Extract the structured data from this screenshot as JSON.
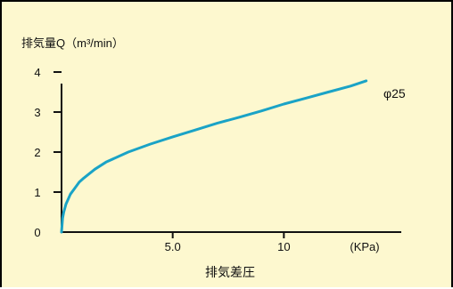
{
  "chart_data": {
    "type": "line",
    "ylabel": "排気量Q（m³/min）",
    "xlabel": "排気差圧",
    "x_unit": "(KPa)",
    "x_ticks": [
      "5.0",
      "10"
    ],
    "x_tick_values": [
      5,
      10
    ],
    "y_ticks": [
      "0",
      "1",
      "2",
      "3",
      "4"
    ],
    "y_tick_values": [
      0,
      1,
      2,
      3,
      4
    ],
    "xlim": [
      0,
      15
    ],
    "ylim": [
      0,
      4.5
    ],
    "grid": false,
    "series": [
      {
        "name": "φ25",
        "color": "#1aa3c6",
        "x": [
          0,
          0.05,
          0.1,
          0.2,
          0.4,
          0.6,
          0.8,
          1,
          1.5,
          2,
          3,
          4,
          5,
          6,
          7,
          8,
          9,
          10,
          11,
          12,
          13,
          13.7
        ],
        "y": [
          0,
          0.35,
          0.5,
          0.7,
          0.95,
          1.1,
          1.25,
          1.35,
          1.57,
          1.75,
          2.0,
          2.2,
          2.38,
          2.55,
          2.72,
          2.87,
          3.03,
          3.2,
          3.35,
          3.5,
          3.65,
          3.78
        ]
      }
    ]
  }
}
